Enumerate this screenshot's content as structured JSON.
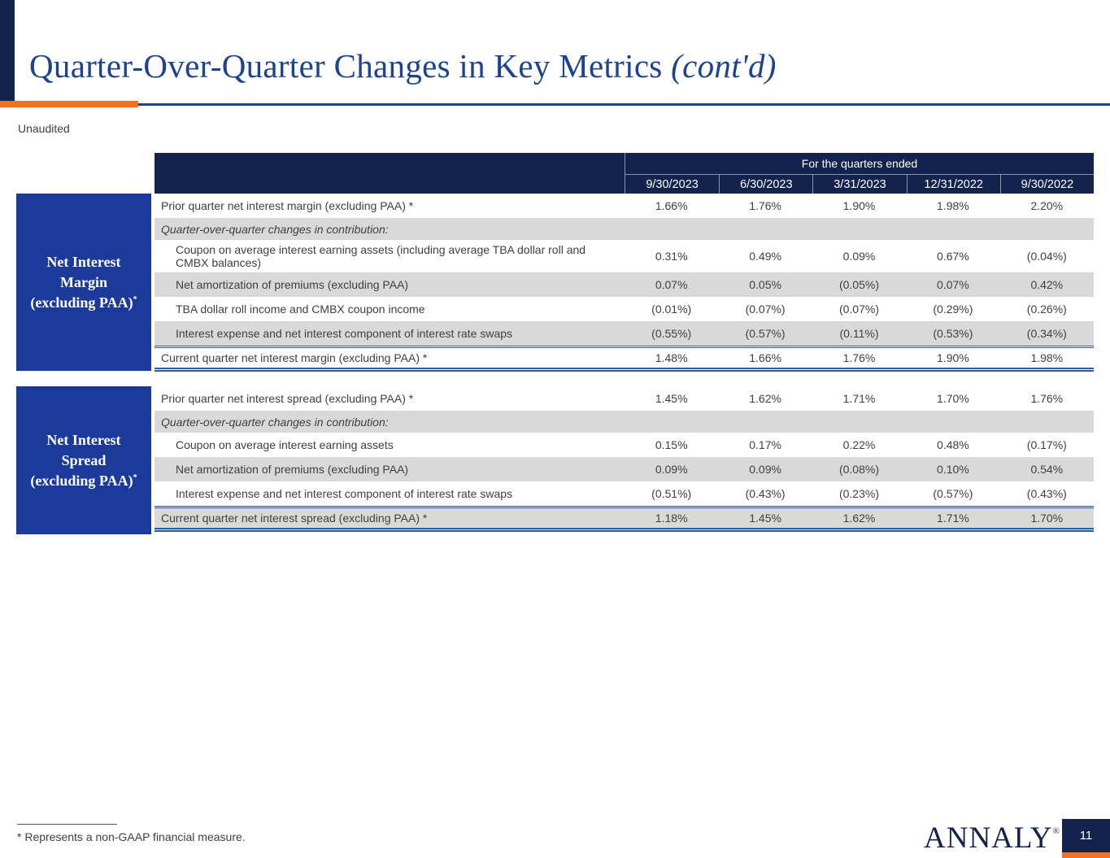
{
  "header": {
    "title": "Quarter-Over-Quarter Changes in Key Metrics",
    "title_suffix": "(cont'd)",
    "subtitle": "Unaudited"
  },
  "colors": {
    "navy": "#13234E",
    "royal_blue": "#1B3A9A",
    "orange": "#F5711D",
    "title_blue": "#1B4392",
    "row_gray": "#D9D9D9",
    "total_border_blue": "#2E5B9E"
  },
  "table": {
    "quarters_header": {
      "title": "For the quarters ended",
      "columns": [
        "9/30/2023",
        "6/30/2023",
        "3/31/2023",
        "12/31/2022",
        "9/30/2022"
      ]
    },
    "sections": [
      {
        "side_label_lines": [
          "Net Interest",
          "Margin",
          "(excluding PAA)"
        ],
        "side_label_sup": "*",
        "rows": [
          {
            "label": "Prior quarter net interest margin (excluding PAA) *",
            "style": "plain",
            "bg": "white",
            "values": [
              "1.66%",
              "1.76%",
              "1.90%",
              "1.98%",
              "2.20%"
            ]
          },
          {
            "label": "Quarter-over-quarter changes in contribution:",
            "style": "subheader",
            "bg": "gray",
            "values": []
          },
          {
            "label": "Coupon on average interest earning assets (including average TBA dollar roll and\nCMBX balances)",
            "style": "indent",
            "bg": "white",
            "values": [
              "0.31%",
              "0.49%",
              "0.09%",
              "0.67%",
              "(0.04%)"
            ]
          },
          {
            "label": "Net amortization of premiums (excluding PAA)",
            "style": "indent",
            "bg": "gray",
            "values": [
              "0.07%",
              "0.05%",
              "(0.05%)",
              "0.07%",
              "0.42%"
            ]
          },
          {
            "label": "TBA dollar roll income and CMBX coupon income",
            "style": "indent",
            "bg": "white",
            "values": [
              "(0.01%)",
              "(0.07%)",
              "(0.07%)",
              "(0.29%)",
              "(0.26%)"
            ]
          },
          {
            "label": "Interest expense and net interest component of interest rate swaps",
            "style": "indent",
            "bg": "gray",
            "values": [
              "(0.55%)",
              "(0.57%)",
              "(0.11%)",
              "(0.53%)",
              "(0.34%)"
            ]
          },
          {
            "label": "Current quarter net interest margin (excluding PAA) *",
            "style": "total",
            "bg": "white",
            "values": [
              "1.48%",
              "1.66%",
              "1.76%",
              "1.90%",
              "1.98%"
            ]
          }
        ]
      },
      {
        "side_label_lines": [
          "Net Interest",
          "Spread",
          "(excluding PAA)"
        ],
        "side_label_sup": "*",
        "rows": [
          {
            "label": "Prior quarter net interest spread (excluding PAA) *",
            "style": "plain",
            "bg": "white",
            "values": [
              "1.45%",
              "1.62%",
              "1.71%",
              "1.70%",
              "1.76%"
            ]
          },
          {
            "label": "Quarter-over-quarter changes in contribution:",
            "style": "subheader",
            "bg": "gray",
            "values": []
          },
          {
            "label": "Coupon on average interest earning assets",
            "style": "indent",
            "bg": "white",
            "values": [
              "0.15%",
              "0.17%",
              "0.22%",
              "0.48%",
              "(0.17%)"
            ]
          },
          {
            "label": "Net amortization of premiums (excluding PAA)",
            "style": "indent",
            "bg": "gray",
            "values": [
              "0.09%",
              "0.09%",
              "(0.08%)",
              "0.10%",
              "0.54%"
            ]
          },
          {
            "label": "Interest expense and net interest component of interest rate swaps",
            "style": "indent",
            "bg": "white",
            "values": [
              "(0.51%)",
              "(0.43%)",
              "(0.23%)",
              "(0.57%)",
              "(0.43%)"
            ]
          },
          {
            "label": "Current quarter net interest spread (excluding PAA) *",
            "style": "total",
            "bg": "gray",
            "values": [
              "1.18%",
              "1.45%",
              "1.62%",
              "1.71%",
              "1.70%"
            ]
          }
        ]
      }
    ]
  },
  "footer": {
    "footnote": "* Represents a non-GAAP financial measure.",
    "logo_text": "ANNALY",
    "logo_mark": "®",
    "page_number": "11"
  }
}
